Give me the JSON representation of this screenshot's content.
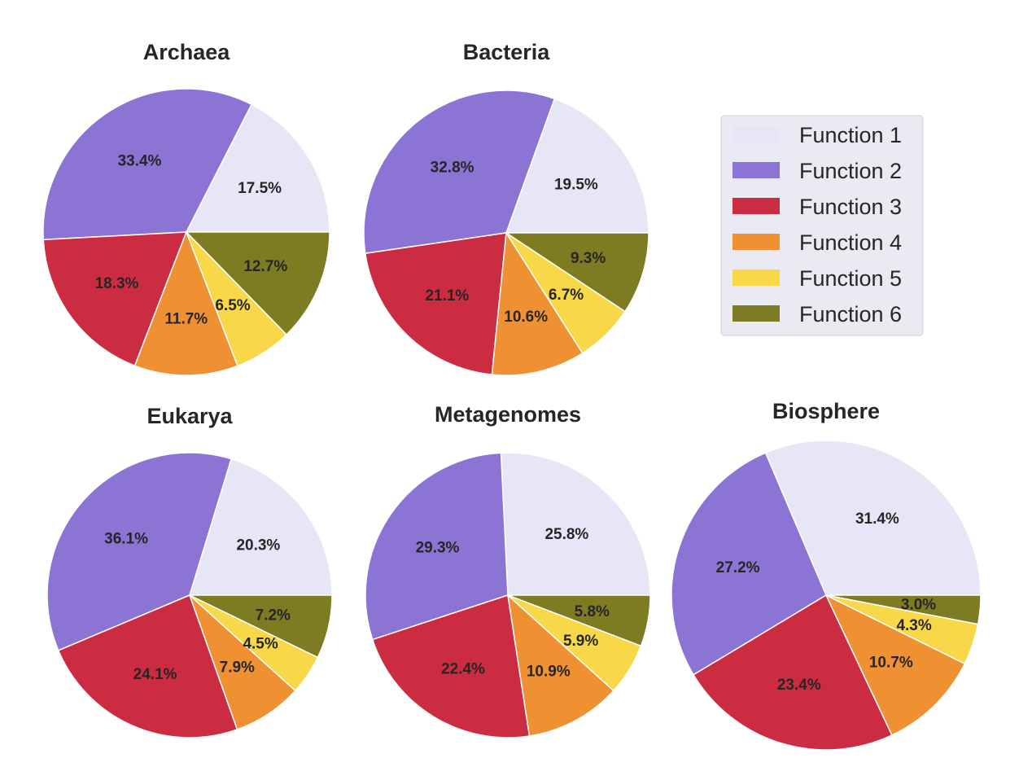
{
  "chart_data": {
    "type": "pie",
    "legend": {
      "placement": "top-right",
      "entries": [
        "Function 1",
        "Function 2",
        "Function 3",
        "Function 4",
        "Function 5",
        "Function 6"
      ]
    },
    "colors": [
      "#e6e6f7",
      "#8c74d5",
      "#cc2c42",
      "#ef9133",
      "#f8d749",
      "#7d7c22"
    ],
    "charts": [
      {
        "title": "Archaea",
        "values": [
          17.5,
          33.4,
          18.3,
          11.7,
          6.5,
          12.7
        ]
      },
      {
        "title": "Bacteria",
        "values": [
          19.5,
          32.8,
          21.1,
          10.6,
          6.7,
          9.3
        ]
      },
      {
        "title": "Eukarya",
        "values": [
          20.3,
          36.1,
          24.1,
          7.9,
          4.5,
          7.2
        ]
      },
      {
        "title": "Metagenomes",
        "values": [
          25.8,
          29.3,
          22.4,
          10.9,
          5.9,
          5.8
        ]
      },
      {
        "title": "Biosphere",
        "values": [
          31.4,
          27.2,
          23.4,
          10.7,
          4.3,
          3.0
        ]
      }
    ]
  }
}
